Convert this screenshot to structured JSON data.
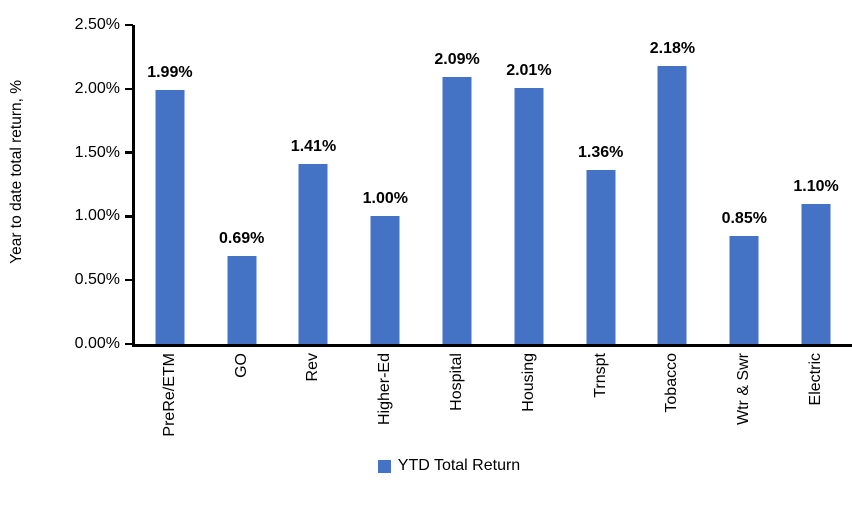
{
  "chart_data": {
    "type": "bar",
    "ylabel": "Year to date total return, %",
    "xlabel": "",
    "categories": [
      "PreRe/ETM",
      "GO",
      "Rev",
      "Higher-Ed",
      "Hospital",
      "Housing",
      "Trnspt",
      "Tobacco",
      "Wtr & Swr",
      "Electric"
    ],
    "series": [
      {
        "name": "YTD Total Return",
        "values": [
          1.99,
          0.69,
          1.41,
          1.0,
          2.09,
          2.01,
          1.36,
          2.18,
          0.85,
          1.1
        ]
      }
    ],
    "value_labels": [
      "1.99%",
      "0.69%",
      "1.41%",
      "1.00%",
      "2.09%",
      "2.01%",
      "1.36%",
      "2.18%",
      "0.85%",
      "1.10%"
    ],
    "y_ticks": [
      "0.00%",
      "0.50%",
      "1.00%",
      "1.50%",
      "2.00%",
      "2.50%"
    ],
    "ylim": [
      0,
      2.5
    ],
    "grid": false,
    "bar_color": "#4472C4",
    "axis_color": "#000000",
    "legend": {
      "label": "YTD Total Return",
      "position": "bottom"
    }
  }
}
